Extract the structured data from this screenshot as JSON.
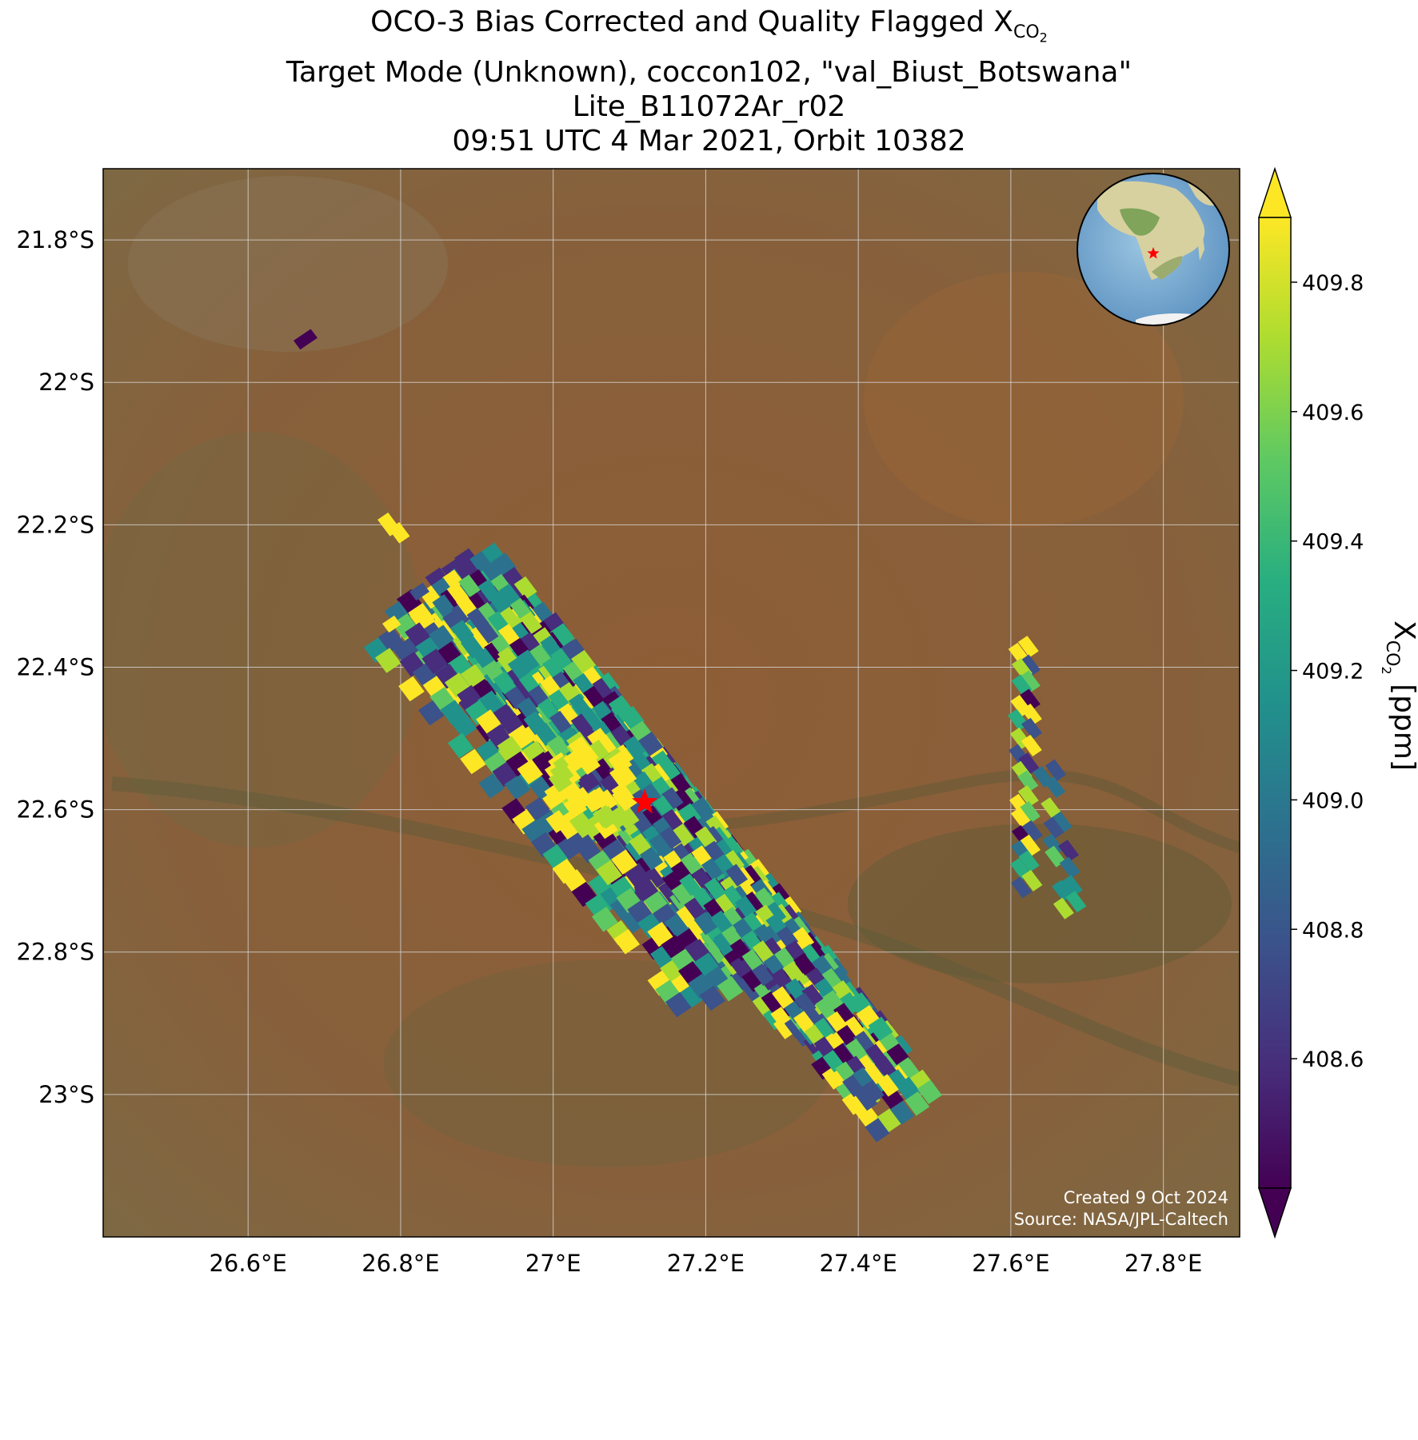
{
  "title": {
    "line1_prefix": "OCO-3 Bias Corrected and Quality Flagged X",
    "line1_sub": "CO",
    "line1_sub2": "2",
    "line2": "Target Mode (Unknown), coccon102, \"val_Biust_Botswana\"",
    "line3": "Lite_B11072Ar_r02",
    "line4": "09:51 UTC 4 Mar 2021, Orbit 10382"
  },
  "axes": {
    "lon_ticks": [
      {
        "value": 26.6,
        "label": "26.6°E"
      },
      {
        "value": 26.8,
        "label": "26.8°E"
      },
      {
        "value": 27.0,
        "label": "27°E"
      },
      {
        "value": 27.2,
        "label": "27.2°E"
      },
      {
        "value": 27.4,
        "label": "27.4°E"
      },
      {
        "value": 27.6,
        "label": "27.6°E"
      },
      {
        "value": 27.8,
        "label": "27.8°E"
      }
    ],
    "lat_ticks": [
      {
        "value": -21.8,
        "label": "21.8°S"
      },
      {
        "value": -22.0,
        "label": "22°S"
      },
      {
        "value": -22.2,
        "label": "22.2°S"
      },
      {
        "value": -22.4,
        "label": "22.4°S"
      },
      {
        "value": -22.6,
        "label": "22.6°S"
      },
      {
        "value": -22.8,
        "label": "22.8°S"
      },
      {
        "value": -23.0,
        "label": "23°S"
      }
    ],
    "lon_range": [
      26.41,
      27.9
    ],
    "lat_range": [
      -23.2,
      -21.7
    ],
    "gridlines": true
  },
  "colorbar": {
    "label_main": "X",
    "label_sub": "CO",
    "label_sub2": "2",
    "label_unit": " [ppm]",
    "colormap": "viridis",
    "range": [
      408.4,
      409.9
    ],
    "extend": "both",
    "ticks": [
      {
        "value": 408.6,
        "label": "408.6"
      },
      {
        "value": 408.8,
        "label": "408.8"
      },
      {
        "value": 409.0,
        "label": "409.0"
      },
      {
        "value": 409.2,
        "label": "409.2"
      },
      {
        "value": 409.4,
        "label": "409.4"
      },
      {
        "value": 409.6,
        "label": "409.6"
      },
      {
        "value": 409.8,
        "label": "409.8"
      }
    ]
  },
  "site": {
    "lon": 27.12,
    "lat": -22.59,
    "marker": "red-star"
  },
  "inset_globe": {
    "center_lon": 27,
    "center_lat": -22,
    "marker": "red-star"
  },
  "credits": {
    "line1": "Created 9 Oct 2024",
    "line2": "Source: NASA/JPL-Caltech"
  },
  "colors": {
    "site_marker": "#ff0000",
    "land": "#93633a",
    "grid": "#d8d8d8"
  }
}
